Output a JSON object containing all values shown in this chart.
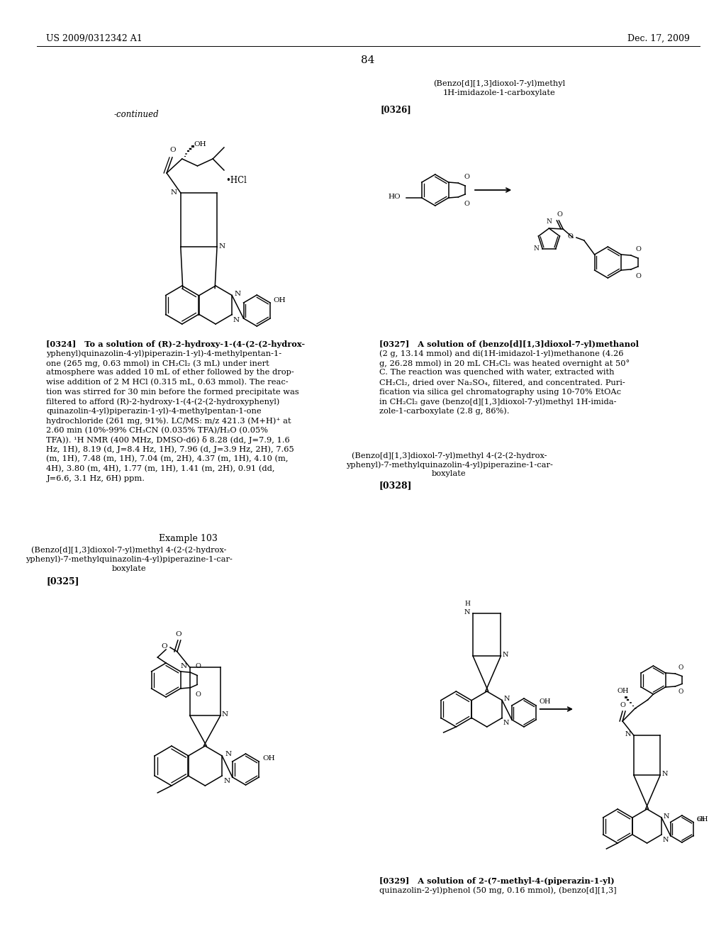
{
  "bg": "#ffffff",
  "header_left": "US 2009/0312342 A1",
  "header_right": "Dec. 17, 2009",
  "page_number": "84",
  "continued": "-continued",
  "title_326a": "(Benzo[d][1,3]dioxol-7-yl)methyl",
  "title_326b": "1H-imidazole-1-carboxylate",
  "ref_326": "[0326]",
  "ref_324": "[0324]",
  "ref_327": "[0327]",
  "ref_328": "[0328]",
  "ref_325": "[0325]",
  "ref_329": "[0329]",
  "example103": "Example 103",
  "ex103_t1": "(Benzo[d][1,3]dioxol-7-yl)methyl 4-(2-(2-hydrox-",
  "ex103_t2": "yphenyl)-7-methylquinazolin-4-yl)piperazine-1-car-",
  "ex103_t3": "boxylate",
  "title_328a": "(Benzo[d][1,3]dioxol-7-yl)methyl 4-(2-(2-hydrox-",
  "title_328b": "yphenyl)-7-methylquinazolin-4-yl)piperazine-1-car-",
  "title_328c": "boxylate",
  "para324_lines": [
    "[0324]   To a solution of (R)-2-hydroxy-1-(4-(2-(2-hydrox-",
    "yphenyl)quinazolin-4-yl)piperazin-1-yl)-4-methylpentan-1-",
    "one (265 mg, 0.63 mmol) in CH₂Cl₂ (3 mL) under inert",
    "atmosphere was added 10 mL of ether followed by the drop-",
    "wise addition of 2 M HCl (0.315 mL, 0.63 mmol). The reac-",
    "tion was stirred for 30 min before the formed precipitate was",
    "filtered to afford (R)-2-hydroxy-1-(4-(2-(2-hydroxyphenyl)",
    "quinazolin-4-yl)piperazin-1-yl)-4-methylpentan-1-one",
    "hydrochloride (261 mg, 91%). LC/MS: m/z 421.3 (M+H)⁺ at",
    "2.60 min (10%-99% CH₃CN (0.035% TFA)/H₂O (0.05%",
    "TFA)). ¹H NMR (400 MHz, DMSO-d6) δ 8.28 (dd, J=7.9, 1.6",
    "Hz, 1H), 8.19 (d, J=8.4 Hz, 1H), 7.96 (d, J=3.9 Hz, 2H), 7.65",
    "(m, 1H), 7.48 (m, 1H), 7.04 (m, 2H), 4.37 (m, 1H), 4.10 (m,",
    "4H), 3.80 (m, 4H), 1.77 (m, 1H), 1.41 (m, 2H), 0.91 (dd,",
    "J=6.6, 3.1 Hz, 6H) ppm."
  ],
  "para327_lines": [
    "[0327]   A solution of (benzo[d][1,3]dioxol-7-yl)methanol",
    "(2 g, 13.14 mmol) and di(1H-imidazol-1-yl)methanone (4.26",
    "g, 26.28 mmol) in 20 mL CH₂Cl₂ was heated overnight at 50°",
    "C. The reaction was quenched with water, extracted with",
    "CH₂Cl₂, dried over Na₂SO₄, filtered, and concentrated. Puri-",
    "fication via silica gel chromatography using 10-70% EtOAc",
    "in CH₂Cl₂ gave (benzo[d][1,3]dioxol-7-yl)methyl 1H-imida-",
    "zole-1-carboxylate (2.8 g, 86%)."
  ],
  "para329_lines": [
    "[0329]   A solution of 2-(7-methyl-4-(piperazin-1-yl)",
    "quinazolin-2-yl)phenol (50 mg, 0.16 mmol), (benzo[d][1,3]"
  ]
}
